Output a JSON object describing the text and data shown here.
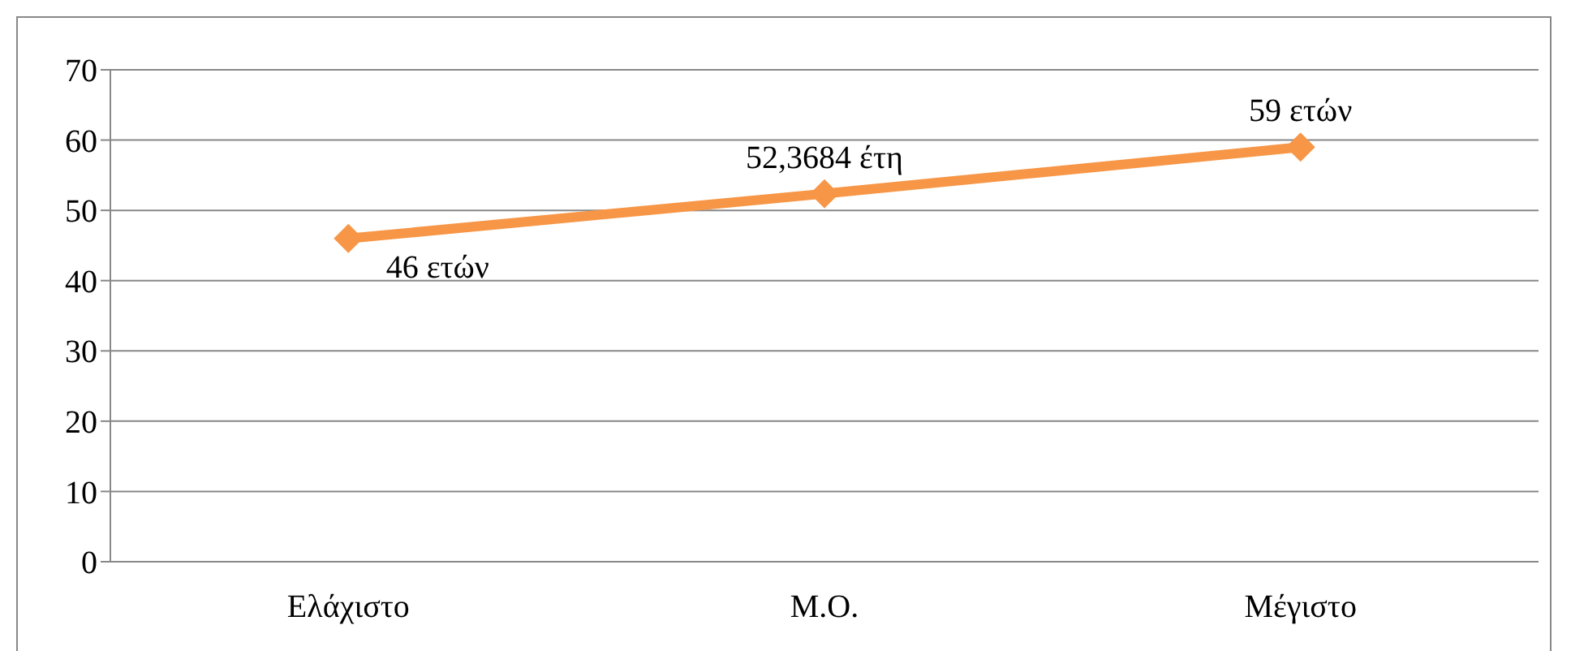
{
  "chart_data": {
    "type": "line",
    "categories": [
      "Ελάχιστο",
      "Μ.Ο.",
      "Μέγιστο"
    ],
    "series": [
      {
        "color": "#f79646",
        "values": [
          46,
          52.3684,
          59
        ],
        "value_labels": [
          "46 ετών",
          "52,3684 έτη",
          "59 ετών"
        ]
      }
    ],
    "ylim": [
      0,
      70
    ],
    "yticks": [
      0,
      10,
      20,
      30,
      40,
      50,
      60,
      70
    ],
    "grid": "y",
    "legend": false,
    "marker": "diamond",
    "line_style": "solid"
  }
}
